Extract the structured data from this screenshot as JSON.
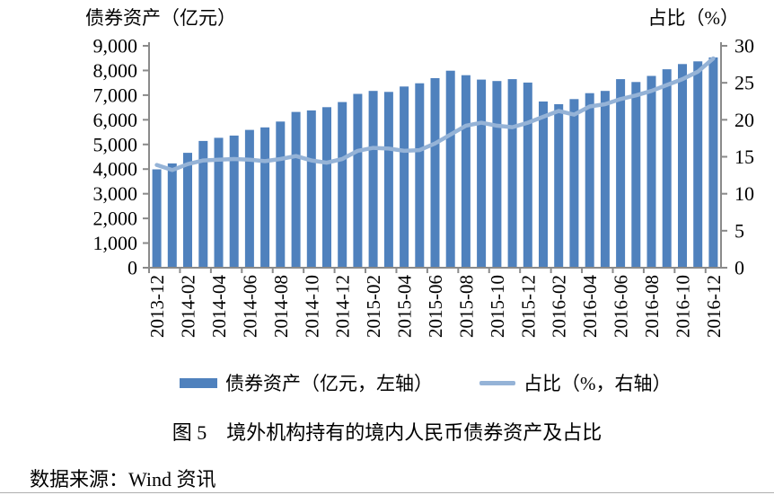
{
  "caption": "图 5　境外机构持有的境内人民币债券资产及占比",
  "source": "数据来源：Wind 资讯",
  "chart_data": {
    "type": "combo-bar-line",
    "title": "图 5　境外机构持有的境内人民币债券资产及占比",
    "grid": false,
    "legend_position": "bottom",
    "categories": [
      "2013-12",
      "2014-01",
      "2014-02",
      "2014-03",
      "2014-04",
      "2014-05",
      "2014-06",
      "2014-07",
      "2014-08",
      "2014-09",
      "2014-10",
      "2014-11",
      "2014-12",
      "2015-01",
      "2015-02",
      "2015-03",
      "2015-04",
      "2015-05",
      "2015-06",
      "2015-07",
      "2015-08",
      "2015-09",
      "2015-10",
      "2015-11",
      "2015-12",
      "2016-01",
      "2016-02",
      "2016-03",
      "2016-04",
      "2016-05",
      "2016-06",
      "2016-07",
      "2016-08",
      "2016-09",
      "2016-10",
      "2016-11",
      "2016-12"
    ],
    "series": [
      {
        "name": "债券资产（亿元，左轴）",
        "type": "bar",
        "axis": "left",
        "color": "#4f81bd",
        "values": [
          3990,
          4230,
          4660,
          5140,
          5270,
          5360,
          5590,
          5690,
          5930,
          6320,
          6380,
          6510,
          6720,
          7050,
          7170,
          7130,
          7350,
          7480,
          7690,
          7990,
          7810,
          7630,
          7570,
          7650,
          7510,
          6740,
          6630,
          6840,
          7080,
          7170,
          7650,
          7530,
          7780,
          8050,
          8260,
          8370,
          8530
        ]
      },
      {
        "name": "占比（%，右轴）",
        "type": "line",
        "axis": "right",
        "color": "#95b3d7",
        "values": [
          13.9,
          13.2,
          14.0,
          14.5,
          14.6,
          14.7,
          14.6,
          14.4,
          14.7,
          15.1,
          14.5,
          14.2,
          14.7,
          15.8,
          16.2,
          16.1,
          15.8,
          15.9,
          16.8,
          18.0,
          19.2,
          19.6,
          19.2,
          19.0,
          19.6,
          20.4,
          21.2,
          20.7,
          21.8,
          22.1,
          22.8,
          23.3,
          23.9,
          24.7,
          25.5,
          26.5,
          28.3
        ]
      }
    ],
    "left_axis": {
      "title": "债券资产（亿元）",
      "min": 0,
      "max": 9000,
      "step": 1000,
      "tick_labels": [
        "0",
        "1,000",
        "2,000",
        "3,000",
        "4,000",
        "5,000",
        "6,000",
        "7,000",
        "8,000",
        "9,000"
      ]
    },
    "right_axis": {
      "title": "占比（%）",
      "min": 0,
      "max": 30,
      "step": 5,
      "tick_labels": [
        "0",
        "5",
        "10",
        "15",
        "20",
        "25",
        "30"
      ]
    },
    "x_axis": {
      "label_interval_months": 2,
      "tick_labels": [
        "2013-12",
        "2014-02",
        "2014-04",
        "2014-06",
        "2014-08",
        "2014-10",
        "2014-12",
        "2015-02",
        "2015-04",
        "2015-06",
        "2015-08",
        "2015-10",
        "2015-12",
        "2016-02",
        "2016-04",
        "2016-06",
        "2016-08",
        "2016-10",
        "2016-12"
      ]
    },
    "axis_color": "#8a8a8a"
  }
}
